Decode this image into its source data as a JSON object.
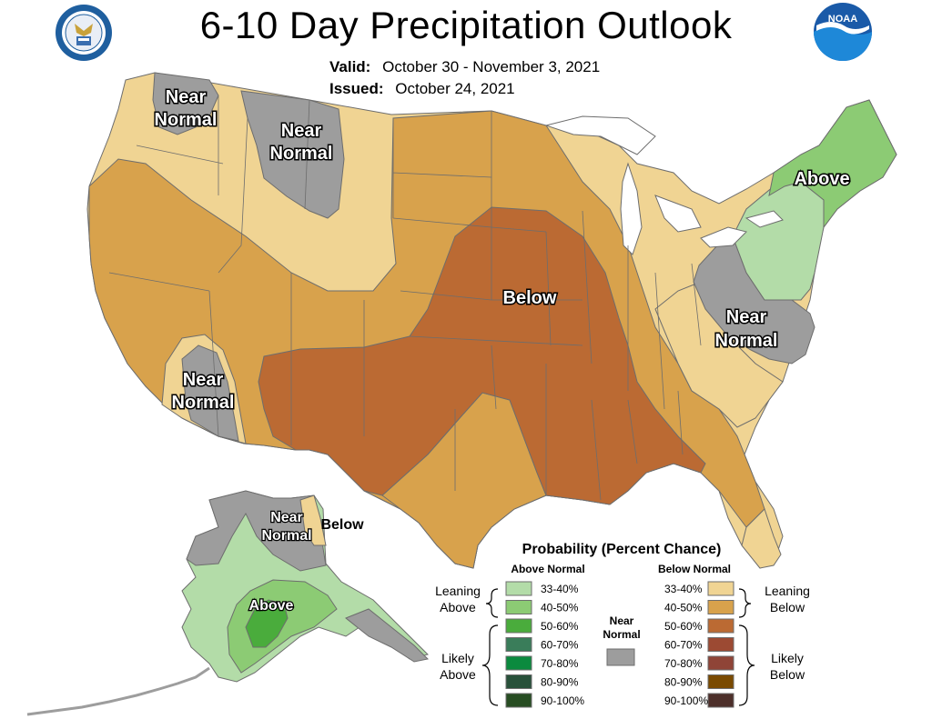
{
  "title": "6-10 Day Precipitation Outlook",
  "valid": {
    "label": "Valid:",
    "value": "October 30 - November 3, 2021"
  },
  "issued": {
    "label": "Issued:",
    "value": "October 24, 2021"
  },
  "logos": {
    "left": "doc-seal-icon",
    "right": "noaa-logo-icon",
    "noaa_text": "NOAA"
  },
  "map_labels": {
    "nw_near_1": "Near",
    "nw_near_2": "Normal",
    "mt_near_1": "Near",
    "mt_near_2": "Normal",
    "sw_near_1": "Near",
    "sw_near_2": "Normal",
    "ne_above": "Above",
    "central_below": "Below",
    "se_near_1": "Near",
    "se_near_2": "Normal",
    "ak_near_1": "Near",
    "ak_near_2": "Normal",
    "ak_below": "Below",
    "ak_above": "Above"
  },
  "legend": {
    "title": "Probability (Percent Chance)",
    "above_header": "Above Normal",
    "below_header": "Below Normal",
    "near_1": "Near",
    "near_2": "Normal",
    "leaning_above_1": "Leaning",
    "leaning_above_2": "Above",
    "likely_above_1": "Likely",
    "likely_above_2": "Above",
    "leaning_below_1": "Leaning",
    "leaning_below_2": "Below",
    "likely_below_1": "Likely",
    "likely_below_2": "Below",
    "above_rows": [
      {
        "label": "33-40%",
        "color": "#b3dca8"
      },
      {
        "label": "40-50%",
        "color": "#8ccb74"
      },
      {
        "label": "50-60%",
        "color": "#4aac3c"
      },
      {
        "label": "60-70%",
        "color": "#3a7d5a"
      },
      {
        "label": "70-80%",
        "color": "#0b8a3e"
      },
      {
        "label": "80-90%",
        "color": "#28513a"
      },
      {
        "label": "90-100%",
        "color": "#274d22"
      }
    ],
    "below_rows": [
      {
        "label": "33-40%",
        "color": "#f0d493"
      },
      {
        "label": "40-50%",
        "color": "#d8a24c"
      },
      {
        "label": "50-60%",
        "color": "#bb6a33"
      },
      {
        "label": "60-70%",
        "color": "#9c4a33"
      },
      {
        "label": "70-80%",
        "color": "#8f4437"
      },
      {
        "label": "80-90%",
        "color": "#7a4a00"
      },
      {
        "label": "90-100%",
        "color": "#4d2f2a"
      }
    ],
    "near_color": "#9d9d9d"
  }
}
